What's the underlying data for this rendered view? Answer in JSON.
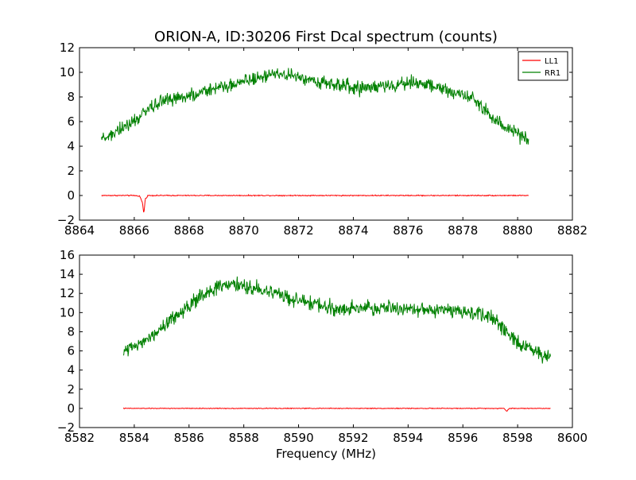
{
  "chart_data": [
    {
      "type": "line",
      "title": "ORION-A, ID:30206 First Dcal spectrum (counts)",
      "xlabel": "",
      "ylabel": "",
      "xlim": [
        8864,
        8882
      ],
      "ylim": [
        -2,
        12
      ],
      "xticks": [
        8864,
        8866,
        8868,
        8870,
        8872,
        8874,
        8876,
        8878,
        8880,
        8882
      ],
      "yticks": [
        -2,
        0,
        2,
        4,
        6,
        8,
        10,
        12
      ],
      "grid": false,
      "legend": "top-right",
      "series": [
        {
          "name": "LL1",
          "color": "#ff0000",
          "x": [
            8864.8,
            8865.4,
            8866.0,
            8866.2,
            8866.3,
            8866.35,
            8866.4,
            8866.5,
            8867.0,
            8868.0,
            8869.0,
            8870.0,
            8871.0,
            8872.0,
            8873.0,
            8874.0,
            8875.0,
            8876.0,
            8877.0,
            8878.0,
            8879.0,
            8880.4
          ],
          "values": [
            0.0,
            0.0,
            0.0,
            -0.05,
            -0.6,
            -1.5,
            -0.3,
            0.0,
            0.0,
            0.0,
            0.0,
            0.0,
            0.0,
            0.0,
            0.0,
            0.0,
            0.0,
            0.0,
            0.0,
            0.0,
            0.0,
            0.0
          ]
        },
        {
          "name": "RR1",
          "color": "#008000",
          "x": [
            8864.8,
            8865.2,
            8865.6,
            8866.0,
            8866.4,
            8866.8,
            8867.2,
            8867.6,
            8868.0,
            8868.4,
            8868.8,
            8869.2,
            8869.6,
            8870.0,
            8870.4,
            8870.8,
            8871.2,
            8871.6,
            8872.0,
            8872.4,
            8872.8,
            8873.2,
            8873.6,
            8874.0,
            8874.4,
            8874.8,
            8875.2,
            8875.6,
            8876.0,
            8876.4,
            8876.8,
            8877.2,
            8877.6,
            8878.0,
            8878.4,
            8878.8,
            8879.2,
            8879.6,
            8880.0,
            8880.4
          ],
          "values": [
            4.6,
            5.0,
            5.4,
            6.0,
            6.8,
            7.4,
            7.8,
            8.0,
            8.1,
            8.3,
            8.6,
            8.8,
            9.1,
            9.3,
            9.5,
            9.7,
            9.8,
            9.8,
            9.6,
            9.4,
            9.2,
            9.0,
            8.9,
            8.8,
            8.7,
            8.8,
            8.9,
            9.0,
            9.1,
            9.1,
            9.0,
            8.7,
            8.4,
            8.2,
            7.8,
            7.0,
            6.2,
            5.5,
            5.0,
            4.6
          ]
        }
      ]
    },
    {
      "type": "line",
      "title": "",
      "xlabel": "Frequency (MHz)",
      "ylabel": "",
      "xlim": [
        8582,
        8600
      ],
      "ylim": [
        -2,
        16
      ],
      "xticks": [
        8582,
        8584,
        8586,
        8588,
        8590,
        8592,
        8594,
        8596,
        8598,
        8600
      ],
      "yticks": [
        -2,
        0,
        2,
        4,
        6,
        8,
        10,
        12,
        14,
        16
      ],
      "grid": false,
      "legend": "none",
      "series": [
        {
          "name": "LL1",
          "color": "#ff0000",
          "x": [
            8583.6,
            8585.0,
            8587.0,
            8589.0,
            8591.0,
            8593.0,
            8595.0,
            8597.0,
            8597.5,
            8597.6,
            8597.7,
            8598.2,
            8599.2
          ],
          "values": [
            0.0,
            0.0,
            0.0,
            0.0,
            0.0,
            0.0,
            0.0,
            0.0,
            0.0,
            -0.3,
            0.0,
            0.0,
            0.0
          ]
        },
        {
          "name": "RR1",
          "color": "#008000",
          "x": [
            8583.6,
            8584.0,
            8584.4,
            8584.8,
            8585.2,
            8585.6,
            8586.0,
            8586.4,
            8586.8,
            8587.2,
            8587.6,
            8588.0,
            8588.4,
            8588.8,
            8589.2,
            8589.6,
            8590.0,
            8590.4,
            8590.8,
            8591.2,
            8591.6,
            8592.0,
            8592.4,
            8592.8,
            8593.2,
            8593.6,
            8594.0,
            8594.4,
            8594.8,
            8595.2,
            8595.6,
            8596.0,
            8596.4,
            8596.8,
            8597.2,
            8597.6,
            8598.0,
            8598.4,
            8598.8,
            8599.2
          ],
          "values": [
            5.9,
            6.3,
            6.9,
            7.8,
            8.8,
            9.8,
            10.8,
            11.6,
            12.3,
            12.7,
            12.9,
            12.8,
            12.5,
            12.2,
            11.9,
            11.6,
            11.3,
            11.0,
            10.7,
            10.5,
            10.4,
            10.4,
            10.5,
            10.5,
            10.5,
            10.5,
            10.4,
            10.3,
            10.2,
            10.2,
            10.2,
            10.2,
            10.0,
            9.8,
            9.2,
            8.0,
            7.0,
            6.4,
            5.8,
            5.4
          ]
        }
      ]
    }
  ]
}
